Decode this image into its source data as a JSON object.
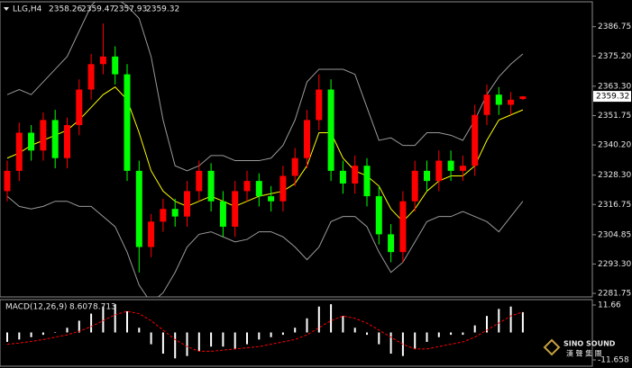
{
  "chart_data": [
    {
      "type": "candlestick",
      "symbol": "LLG,H4",
      "open": [
        2322,
        2330,
        2345,
        2338,
        2350,
        2335,
        2348,
        2362,
        2372,
        2375,
        2368,
        2330,
        2300,
        2310,
        2315,
        2312,
        2322,
        2330,
        2318,
        2308,
        2322,
        2326,
        2320,
        2318,
        2328,
        2335,
        2350,
        2362,
        2330,
        2325,
        2332,
        2320,
        2305,
        2298,
        2318,
        2330,
        2326,
        2334,
        2330,
        2332,
        2352,
        2360,
        2356,
        2358.26
      ],
      "high": [
        2334,
        2349,
        2348,
        2353,
        2354,
        2351,
        2366,
        2376,
        2388,
        2379,
        2372,
        2334,
        2313,
        2319,
        2319,
        2326,
        2334,
        2333,
        2322,
        2326,
        2330,
        2329,
        2324,
        2332,
        2339,
        2354,
        2368,
        2366,
        2334,
        2336,
        2335,
        2324,
        2309,
        2322,
        2334,
        2334,
        2338,
        2338,
        2336,
        2356,
        2364,
        2363,
        2361,
        2359.47
      ],
      "low": [
        2318,
        2326,
        2334,
        2334,
        2331,
        2331,
        2344,
        2358,
        2368,
        2364,
        2326,
        2290,
        2296,
        2306,
        2308,
        2308,
        2318,
        2314,
        2304,
        2304,
        2318,
        2316,
        2314,
        2314,
        2324,
        2331,
        2346,
        2326,
        2321,
        2321,
        2316,
        2301,
        2294,
        2294,
        2314,
        2322,
        2322,
        2326,
        2326,
        2328,
        2348,
        2352,
        2352,
        2357.93
      ],
      "close": [
        2330,
        2345,
        2338,
        2350,
        2335,
        2348,
        2362,
        2372,
        2375,
        2368,
        2330,
        2300,
        2310,
        2315,
        2312,
        2322,
        2330,
        2318,
        2308,
        2322,
        2326,
        2320,
        2318,
        2328,
        2335,
        2350,
        2362,
        2330,
        2325,
        2332,
        2320,
        2305,
        2298,
        2318,
        2330,
        2326,
        2334,
        2330,
        2332,
        2352,
        2360,
        2356,
        2358,
        2359.32
      ],
      "up_color": "#ff0000",
      "down_color": "#00ff00",
      "series": [
        {
          "color": "#ffff00",
          "values": [
            2335,
            2337,
            2340,
            2342,
            2344,
            2346,
            2350,
            2355,
            2360,
            2363,
            2358,
            2345,
            2330,
            2322,
            2318,
            2316,
            2318,
            2320,
            2318,
            2316,
            2318,
            2320,
            2321,
            2322,
            2325,
            2332,
            2345,
            2345,
            2335,
            2330,
            2328,
            2324,
            2315,
            2310,
            2315,
            2322,
            2326,
            2328,
            2328,
            2332,
            2342,
            2350,
            2352,
            2354
          ]
        },
        {
          "color": "#9a9a9a",
          "values": [
            2360,
            2362,
            2360,
            2365,
            2370,
            2375,
            2385,
            2395,
            2400,
            2398,
            2395,
            2390,
            2375,
            2350,
            2332,
            2330,
            2332,
            2336,
            2336,
            2334,
            2334,
            2334,
            2335,
            2340,
            2350,
            2365,
            2370,
            2370,
            2370,
            2368,
            2355,
            2342,
            2343,
            2340,
            2340,
            2345,
            2345,
            2344,
            2342,
            2350,
            2360,
            2367,
            2372,
            2376
          ]
        },
        {
          "color": "#9a9a9a",
          "values": [
            2320,
            2316,
            2315,
            2316,
            2318,
            2318,
            2316,
            2316,
            2312,
            2308,
            2298,
            2285,
            2278,
            2282,
            2290,
            2300,
            2305,
            2306,
            2304,
            2302,
            2303,
            2306,
            2306,
            2304,
            2300,
            2295,
            2300,
            2310,
            2312,
            2312,
            2308,
            2298,
            2290,
            2294,
            2302,
            2310,
            2312,
            2312,
            2314,
            2312,
            2310,
            2306,
            2312,
            2318
          ]
        }
      ],
      "ylim": [
        2280.35,
        2396.55
      ],
      "yticks": [
        2386.75,
        {
          "value": 2375.2,
          "label": "2375.20"
        },
        {
          "value": 2363.3,
          "label": "2363.30"
        },
        2351.75,
        {
          "value": 2340.2,
          "label": "2340.20"
        },
        {
          "value": 2328.3,
          "label": "2328.30"
        },
        2316.75,
        2304.85,
        {
          "value": 2293.3,
          "label": "2293.30"
        },
        2281.75
      ]
    },
    {
      "type": "macd",
      "title": "MACD(12,26,9)",
      "color": "#ffffff",
      "values": [
        -4,
        -3,
        -2,
        -1,
        0,
        2,
        5,
        8,
        11,
        12,
        9,
        2,
        -5,
        -9,
        -11,
        -10,
        -8,
        -6,
        -6,
        -7,
        -5,
        -3,
        -2,
        -1,
        2,
        6,
        11,
        12,
        7,
        2,
        -1,
        -5,
        -9,
        -10,
        -7,
        -4,
        -2,
        -1,
        -1,
        3,
        7,
        10,
        11,
        8.607
      ],
      "series": [
        {
          "color": "#ff0000",
          "values": [
            -5,
            -4.5,
            -3.8,
            -3,
            -2,
            -1,
            0.5,
            2.5,
            5,
            7.5,
            9,
            8,
            5,
            1,
            -3,
            -6,
            -8,
            -8,
            -7.5,
            -7,
            -6.5,
            -6,
            -5,
            -4,
            -3,
            -1,
            2,
            5,
            7,
            6,
            4,
            1,
            -2,
            -5,
            -7,
            -7,
            -6,
            -5,
            -4,
            -2,
            1,
            4,
            7,
            8.713
          ]
        }
      ],
      "ylim": [
        -14.33,
        13.95
      ],
      "yticks": [
        11.66,
        -11.658
      ]
    }
  ],
  "watermark": {
    "title": "SINO SOUND",
    "subtitle": "漢 聲 集 團"
  }
}
